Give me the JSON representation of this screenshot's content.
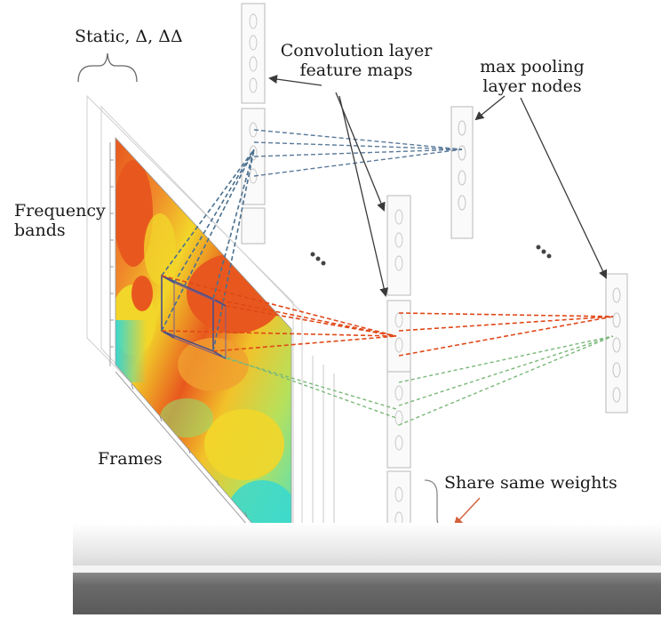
{
  "labels": {
    "channels": "Static, Δ, ΔΔ",
    "frequency_bands": [
      "Frequency",
      "bands"
    ],
    "frames": "Frames",
    "conv_maps": [
      "Convolution layer",
      "feature maps"
    ],
    "max_pooling": [
      "max pooling",
      "layer nodes"
    ],
    "share_weights": "Share same weights"
  },
  "colors": {
    "spectrogram_hot": "#e8581e",
    "spectrogram_mid": "#f2d62a",
    "spectrogram_cool": "#3ee0cf",
    "receptive_field": "#4a4f8a",
    "blue_connections": "#4a7090",
    "orange_connections": "#e04818",
    "green_connections": "#7ab87a",
    "pointer_arrow": "#3a3a3a",
    "share_arrow": "#d4603a"
  }
}
